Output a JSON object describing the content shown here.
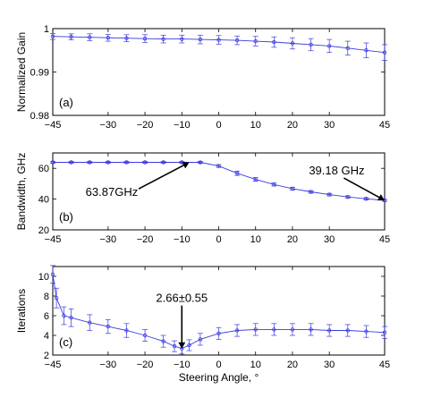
{
  "colors": {
    "series": "#3a3ae0",
    "axis": "#000000",
    "background": "#ffffff",
    "annotation": "#000000"
  },
  "chart_data": [
    {
      "type": "line",
      "panel_label": "(a)",
      "xlabel": "",
      "ylabel": "Normalized Gain",
      "xlim": [
        -45,
        45
      ],
      "ylim": [
        0.98,
        1.0
      ],
      "xticks": [
        -45,
        -30,
        -20,
        -10,
        0,
        10,
        20,
        30,
        45
      ],
      "xtick_labels": [
        "−45",
        "−30",
        "−20",
        "−10",
        "0",
        "10",
        "20",
        "30",
        "45"
      ],
      "yticks": [
        0.98,
        0.99,
        1.0
      ],
      "ytick_labels": [
        "0.98",
        "0.99",
        "1"
      ],
      "grid": false,
      "error_bars": true,
      "x": [
        -45,
        -40,
        -35,
        -30,
        -25,
        -20,
        -15,
        -10,
        -5,
        0,
        5,
        10,
        15,
        20,
        25,
        30,
        35,
        40,
        45
      ],
      "y": [
        0.9982,
        0.9981,
        0.998,
        0.9979,
        0.9978,
        0.9977,
        0.9976,
        0.9976,
        0.9975,
        0.9974,
        0.9973,
        0.9971,
        0.9969,
        0.9966,
        0.9963,
        0.996,
        0.9955,
        0.995,
        0.9945
      ],
      "err": [
        0.0007,
        0.0007,
        0.0008,
        0.0008,
        0.0008,
        0.0009,
        0.0009,
        0.0009,
        0.001,
        0.001,
        0.001,
        0.0011,
        0.0012,
        0.0013,
        0.0014,
        0.0015,
        0.0016,
        0.0017,
        0.0018
      ],
      "annotations": []
    },
    {
      "type": "line",
      "panel_label": "(b)",
      "xlabel": "",
      "ylabel": "Bandwidth, GHz",
      "xlim": [
        -45,
        45
      ],
      "ylim": [
        20,
        70
      ],
      "xticks": [
        -45,
        -30,
        -20,
        -10,
        0,
        10,
        20,
        30,
        45
      ],
      "xtick_labels": [
        "−45",
        "−30",
        "−20",
        "−10",
        "0",
        "10",
        "20",
        "30",
        "45"
      ],
      "yticks": [
        20,
        40,
        60
      ],
      "ytick_labels": [
        "20",
        "40",
        "60"
      ],
      "grid": false,
      "error_bars": true,
      "x": [
        -45,
        -40,
        -35,
        -30,
        -25,
        -20,
        -15,
        -10,
        -5,
        0,
        5,
        10,
        15,
        20,
        25,
        30,
        35,
        40,
        45
      ],
      "y": [
        63.9,
        63.9,
        63.9,
        63.9,
        63.9,
        63.9,
        63.9,
        63.9,
        63.87,
        61.5,
        56.8,
        52.8,
        49.5,
        46.8,
        44.7,
        42.9,
        41.4,
        40.2,
        39.18
      ],
      "err": [
        0.6,
        0.6,
        0.6,
        0.6,
        0.6,
        0.6,
        0.6,
        0.6,
        0.6,
        0.9,
        1.4,
        1.2,
        1.0,
        0.9,
        0.8,
        0.8,
        0.7,
        0.7,
        0.6
      ],
      "annotations": [
        {
          "text": "63.87GHz",
          "x": -8,
          "y": 63.87,
          "text_x": -29,
          "text_y": 42
        },
        {
          "text": "39.18 GHz",
          "x": 45,
          "y": 39.18,
          "text_x": 32,
          "text_y": 56
        }
      ]
    },
    {
      "type": "line",
      "panel_label": "(c)",
      "xlabel": "Steering Angle, °",
      "ylabel": "Iterations",
      "xlim": [
        -45,
        45
      ],
      "ylim": [
        2,
        11
      ],
      "xticks": [
        -45,
        -30,
        -20,
        -10,
        0,
        10,
        20,
        30,
        45
      ],
      "xtick_labels": [
        "−45",
        "−30",
        "−20",
        "−10",
        "0",
        "10",
        "20",
        "30",
        "45"
      ],
      "yticks": [
        2,
        4,
        6,
        8,
        10
      ],
      "ytick_labels": [
        "2",
        "4",
        "6",
        "8",
        "10"
      ],
      "grid": false,
      "error_bars": true,
      "x": [
        -45,
        -44,
        -42,
        -40,
        -35,
        -30,
        -25,
        -20,
        -15,
        -12,
        -10,
        -8,
        -5,
        0,
        5,
        10,
        15,
        20,
        25,
        30,
        35,
        40,
        45
      ],
      "y": [
        10.2,
        7.8,
        6.0,
        5.8,
        5.3,
        4.9,
        4.5,
        4.0,
        3.4,
        2.9,
        2.66,
        3.0,
        3.6,
        4.2,
        4.5,
        4.6,
        4.6,
        4.6,
        4.6,
        4.5,
        4.5,
        4.4,
        4.3
      ],
      "err": [
        0.9,
        1.0,
        0.9,
        0.9,
        0.8,
        0.7,
        0.7,
        0.6,
        0.6,
        0.55,
        0.55,
        0.55,
        0.6,
        0.6,
        0.6,
        0.6,
        0.6,
        0.6,
        0.6,
        0.6,
        0.6,
        0.6,
        0.6
      ],
      "annotations": [
        {
          "text": "2.66±0.55",
          "x": -10,
          "y": 2.66,
          "text_x": -10,
          "text_y": 7.4
        }
      ]
    }
  ]
}
